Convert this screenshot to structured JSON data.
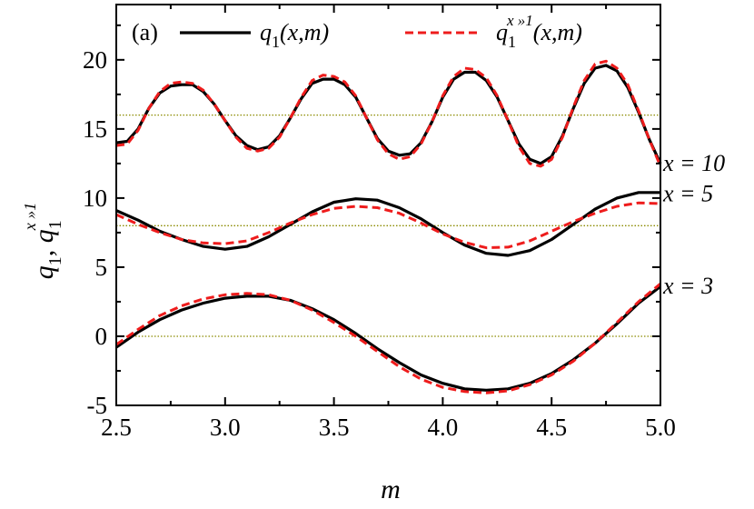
{
  "chart_data": {
    "type": "line",
    "panel_label": "(a)",
    "xlabel": "m",
    "ylabel": "q_1, q_1^{x»1}",
    "ylabel_parts": {
      "base1": "q",
      "sub1": "1",
      "sep": ",",
      "base2": "q",
      "sub2": "1",
      "sup2": "x »1"
    },
    "xlim": [
      2.5,
      5.0
    ],
    "ylim": [
      -5,
      24
    ],
    "xticks": [
      2.5,
      3.0,
      3.5,
      4.0,
      4.5,
      5.0
    ],
    "xtick_labels": [
      "2.5",
      "3.0",
      "3.5",
      "4.0",
      "4.5",
      "5.0"
    ],
    "yticks": [
      -5,
      0,
      5,
      10,
      15,
      20
    ],
    "ytick_labels": [
      "-5",
      "0",
      "5",
      "10",
      "15",
      "20"
    ],
    "legend": {
      "placement": "top",
      "entries": [
        {
          "series": "exact",
          "base": "q",
          "sub": "1",
          "args": "(x,m)"
        },
        {
          "series": "asymptotic",
          "base": "q",
          "sub": "1",
          "sup": "x »1",
          "args": "(x,m)"
        }
      ]
    },
    "reference_lines": [
      {
        "y": 16,
        "color": "#8b8b00"
      },
      {
        "y": 8,
        "color": "#8b8b00"
      },
      {
        "y": 0,
        "color": "#8b8b00"
      }
    ],
    "curve_labels": [
      {
        "text": "x = 10",
        "x": 5.0,
        "y": 12.5
      },
      {
        "text": "x = 5",
        "x": 5.0,
        "y": 10.3
      },
      {
        "text": "x = 3",
        "x": 5.0,
        "y": 3.6
      }
    ],
    "series": [
      {
        "id": "exact",
        "group": "x = 10",
        "color": "#000000",
        "dash": "solid",
        "x": [
          2.5,
          2.55,
          2.6,
          2.65,
          2.7,
          2.75,
          2.8,
          2.85,
          2.9,
          2.95,
          3.0,
          3.05,
          3.1,
          3.15,
          3.2,
          3.25,
          3.3,
          3.35,
          3.4,
          3.45,
          3.5,
          3.55,
          3.6,
          3.65,
          3.7,
          3.75,
          3.8,
          3.85,
          3.9,
          3.95,
          4.0,
          4.05,
          4.1,
          4.15,
          4.2,
          4.25,
          4.3,
          4.35,
          4.4,
          4.45,
          4.5,
          4.55,
          4.6,
          4.65,
          4.7,
          4.75,
          4.8,
          4.85,
          4.9,
          4.95,
          5.0
        ],
        "y": [
          14.0,
          14.1,
          15.0,
          16.5,
          17.6,
          18.1,
          18.2,
          18.2,
          17.7,
          16.8,
          15.6,
          14.5,
          13.8,
          13.5,
          13.7,
          14.5,
          15.8,
          17.2,
          18.3,
          18.6,
          18.6,
          18.2,
          17.3,
          15.8,
          14.3,
          13.4,
          13.1,
          13.2,
          14.0,
          15.5,
          17.3,
          18.6,
          19.1,
          19.1,
          18.5,
          17.3,
          15.6,
          13.9,
          12.8,
          12.5,
          13.0,
          14.5,
          16.5,
          18.3,
          19.4,
          19.6,
          19.2,
          18.0,
          16.2,
          14.2,
          12.5
        ]
      },
      {
        "id": "asymptotic",
        "group": "x = 10",
        "color": "#ee1c1c",
        "dash": "dashed",
        "x": [
          2.5,
          2.55,
          2.6,
          2.65,
          2.7,
          2.75,
          2.8,
          2.85,
          2.9,
          2.95,
          3.0,
          3.05,
          3.1,
          3.15,
          3.2,
          3.25,
          3.3,
          3.35,
          3.4,
          3.45,
          3.5,
          3.55,
          3.6,
          3.65,
          3.7,
          3.75,
          3.8,
          3.85,
          3.9,
          3.95,
          4.0,
          4.05,
          4.1,
          4.15,
          4.2,
          4.25,
          4.3,
          4.35,
          4.4,
          4.45,
          4.5,
          4.55,
          4.6,
          4.65,
          4.7,
          4.75,
          4.8,
          4.85,
          4.9,
          4.95,
          5.0
        ],
        "y": [
          13.8,
          13.9,
          14.9,
          16.5,
          17.7,
          18.3,
          18.4,
          18.3,
          17.8,
          16.8,
          15.6,
          14.4,
          13.6,
          13.4,
          13.6,
          14.4,
          15.8,
          17.3,
          18.5,
          18.9,
          18.8,
          18.4,
          17.4,
          15.8,
          14.2,
          13.2,
          12.8,
          13.0,
          13.9,
          15.5,
          17.4,
          18.8,
          19.4,
          19.3,
          18.7,
          17.4,
          15.6,
          13.7,
          12.5,
          12.3,
          12.8,
          14.4,
          16.6,
          18.5,
          19.7,
          19.9,
          19.4,
          18.2,
          16.3,
          14.2,
          12.3
        ]
      },
      {
        "id": "exact",
        "group": "x = 5",
        "color": "#000000",
        "dash": "solid",
        "x": [
          2.5,
          2.6,
          2.7,
          2.8,
          2.9,
          3.0,
          3.1,
          3.2,
          3.3,
          3.4,
          3.5,
          3.6,
          3.7,
          3.8,
          3.9,
          4.0,
          4.1,
          4.2,
          4.3,
          4.4,
          4.5,
          4.6,
          4.7,
          4.8,
          4.9,
          5.0
        ],
        "y": [
          9.1,
          8.4,
          7.6,
          7.0,
          6.5,
          6.3,
          6.5,
          7.2,
          8.1,
          9.0,
          9.7,
          9.95,
          9.85,
          9.3,
          8.5,
          7.5,
          6.6,
          6.0,
          5.85,
          6.2,
          7.0,
          8.1,
          9.2,
          10.0,
          10.4,
          10.4
        ]
      },
      {
        "id": "asymptotic",
        "group": "x = 5",
        "color": "#ee1c1c",
        "dash": "dashed",
        "x": [
          2.5,
          2.6,
          2.7,
          2.8,
          2.9,
          3.0,
          3.1,
          3.2,
          3.3,
          3.4,
          3.5,
          3.6,
          3.7,
          3.8,
          3.9,
          4.0,
          4.1,
          4.2,
          4.3,
          4.4,
          4.5,
          4.6,
          4.7,
          4.8,
          4.9,
          5.0
        ],
        "y": [
          8.8,
          8.1,
          7.5,
          7.0,
          6.75,
          6.7,
          6.9,
          7.5,
          8.2,
          8.8,
          9.25,
          9.4,
          9.3,
          8.9,
          8.2,
          7.4,
          6.8,
          6.4,
          6.45,
          6.9,
          7.6,
          8.3,
          8.9,
          9.4,
          9.65,
          9.6
        ]
      },
      {
        "id": "exact",
        "group": "x = 3",
        "color": "#000000",
        "dash": "solid",
        "x": [
          2.5,
          2.6,
          2.7,
          2.8,
          2.9,
          3.0,
          3.1,
          3.2,
          3.3,
          3.4,
          3.5,
          3.6,
          3.7,
          3.8,
          3.9,
          4.0,
          4.1,
          4.2,
          4.3,
          4.4,
          4.5,
          4.6,
          4.7,
          4.8,
          4.9,
          5.0
        ],
        "y": [
          -0.8,
          0.3,
          1.2,
          1.9,
          2.4,
          2.75,
          2.9,
          2.9,
          2.6,
          2.0,
          1.2,
          0.2,
          -0.9,
          -1.9,
          -2.8,
          -3.4,
          -3.8,
          -3.9,
          -3.8,
          -3.4,
          -2.7,
          -1.7,
          -0.5,
          0.9,
          2.4,
          3.6
        ]
      },
      {
        "id": "asymptotic",
        "group": "x = 3",
        "color": "#ee1c1c",
        "dash": "dashed",
        "x": [
          2.5,
          2.6,
          2.7,
          2.8,
          2.9,
          3.0,
          3.1,
          3.2,
          3.3,
          3.4,
          3.5,
          3.6,
          3.7,
          3.8,
          3.9,
          4.0,
          4.1,
          4.2,
          4.3,
          4.4,
          4.5,
          4.6,
          4.7,
          4.8,
          4.9,
          5.0
        ],
        "y": [
          -0.6,
          0.5,
          1.5,
          2.2,
          2.7,
          3.0,
          3.1,
          3.0,
          2.6,
          1.9,
          1.0,
          0.0,
          -1.1,
          -2.2,
          -3.1,
          -3.7,
          -4.0,
          -4.1,
          -3.95,
          -3.5,
          -2.8,
          -1.8,
          -0.5,
          1.0,
          2.5,
          3.8
        ]
      }
    ]
  }
}
